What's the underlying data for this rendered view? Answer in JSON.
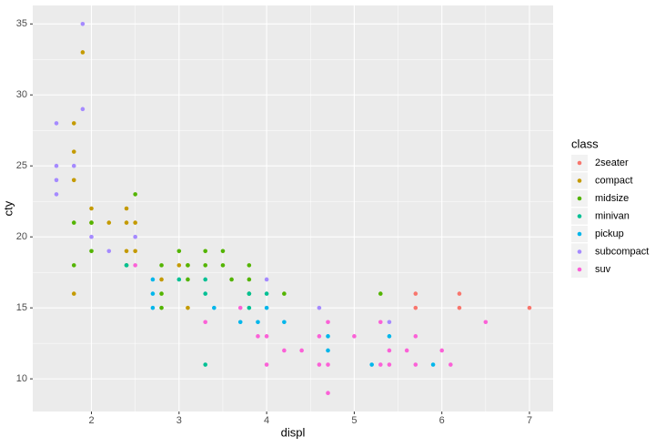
{
  "chart_data": {
    "type": "scatter",
    "x_label": "displ",
    "y_label": "cty",
    "legend_title": "class",
    "xlim": [
      1.33,
      7.27
    ],
    "ylim": [
      7.7,
      36.3
    ],
    "xticks": [
      2,
      3,
      4,
      5,
      6,
      7
    ],
    "yticks": [
      10,
      15,
      20,
      25,
      30,
      35
    ],
    "grid": true,
    "legend_position": "right",
    "series": [
      {
        "name": "2seater",
        "color": "#F8766D",
        "x": [
          5.7,
          5.7,
          6.2,
          6.2,
          7.0
        ],
        "y": [
          16,
          15,
          16,
          15,
          15
        ]
      },
      {
        "name": "compact",
        "color": "#C49A00",
        "x": [
          1.8,
          1.8,
          1.8,
          1.8,
          1.9,
          2.0,
          2.0,
          2.2,
          2.4,
          2.4,
          2.4,
          2.5,
          2.5,
          2.8,
          3.0,
          3.1,
          3.1
        ],
        "y": [
          28,
          26,
          24,
          16,
          33,
          22,
          21,
          21,
          22,
          21,
          19,
          21,
          19,
          17,
          18,
          18,
          15
        ]
      },
      {
        "name": "midsize",
        "color": "#53B400",
        "x": [
          1.8,
          1.8,
          2.0,
          2.0,
          2.4,
          2.5,
          2.8,
          2.8,
          2.8,
          3.0,
          3.1,
          3.1,
          3.3,
          3.3,
          3.5,
          3.5,
          3.6,
          3.8,
          3.8,
          3.8,
          4.2,
          5.3
        ],
        "y": [
          21,
          18,
          21,
          19,
          18,
          23,
          18,
          16,
          15,
          19,
          18,
          17,
          19,
          18,
          19,
          18,
          17,
          18,
          17,
          16,
          16,
          16
        ]
      },
      {
        "name": "minivan",
        "color": "#00C094",
        "x": [
          2.4,
          3.0,
          3.3,
          3.3,
          3.3,
          3.8,
          3.8,
          4.0
        ],
        "y": [
          18,
          17,
          17,
          16,
          11,
          15,
          16,
          16
        ]
      },
      {
        "name": "pickup",
        "color": "#00B6EB",
        "x": [
          2.7,
          2.7,
          2.7,
          3.4,
          3.7,
          3.9,
          4.0,
          4.2,
          4.7,
          4.7,
          5.2,
          5.4,
          5.9
        ],
        "y": [
          17,
          16,
          15,
          15,
          14,
          14,
          15,
          14,
          13,
          12,
          11,
          13,
          11
        ]
      },
      {
        "name": "subcompact",
        "color": "#A58AFF",
        "x": [
          1.6,
          1.6,
          1.6,
          1.6,
          1.8,
          1.9,
          1.9,
          2.0,
          2.2,
          2.5,
          4.0,
          4.6,
          5.4
        ],
        "y": [
          28,
          25,
          24,
          23,
          25,
          35,
          29,
          20,
          19,
          20,
          17,
          15,
          14
        ]
      },
      {
        "name": "suv",
        "color": "#FB61D7",
        "x": [
          2.5,
          3.3,
          3.7,
          3.9,
          4.0,
          4.0,
          4.2,
          4.4,
          4.6,
          4.6,
          4.7,
          4.7,
          4.7,
          5.0,
          5.3,
          5.3,
          5.4,
          5.4,
          5.6,
          5.7,
          5.7,
          6.0,
          6.1,
          6.5
        ],
        "y": [
          18,
          14,
          15,
          13,
          13,
          11,
          12,
          12,
          13,
          11,
          14,
          11,
          9,
          13,
          14,
          11,
          12,
          11,
          12,
          13,
          11,
          12,
          11,
          14
        ]
      }
    ]
  }
}
